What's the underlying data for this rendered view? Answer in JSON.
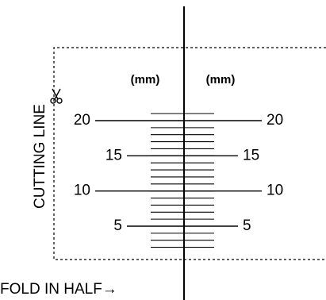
{
  "unit_labels": {
    "left": "(mm)",
    "right": "(mm)"
  },
  "cutting_line_label": "CUTTING LINE",
  "fold_label": "FOLD IN HALF→",
  "icons": {
    "scissors": "scissors-icon"
  },
  "scale_marks": [
    {
      "value_mm": 20,
      "left_label": "20",
      "right_label": "20"
    },
    {
      "value_mm": 15,
      "left_label": "15",
      "right_label": "15"
    },
    {
      "value_mm": 10,
      "left_label": "10",
      "right_label": "10"
    },
    {
      "value_mm": 5,
      "left_label": "5",
      "right_label": "5"
    }
  ],
  "colors": {
    "ink": "#000000",
    "paper": "#ffffff"
  }
}
